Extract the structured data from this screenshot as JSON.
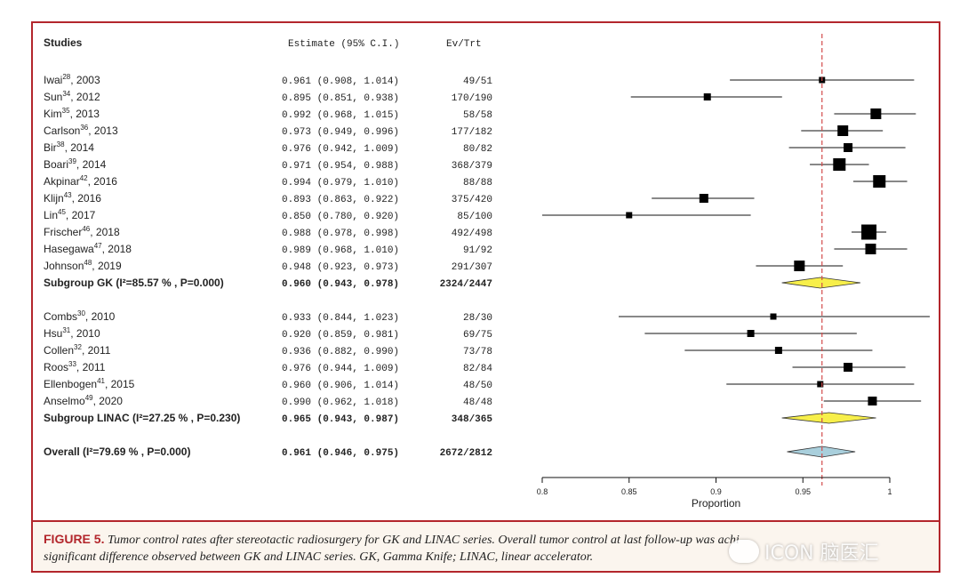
{
  "headers": {
    "study": "Studies",
    "estimate": "Estimate (95% C.I.)",
    "events": "Ev/Trt"
  },
  "chart_data": {
    "type": "forest",
    "x_axis": {
      "label": "Proportion",
      "ticks": [
        "0.8",
        "0.85",
        "0.9",
        "0.95",
        "1"
      ],
      "range": [
        0.8,
        1.0
      ]
    },
    "reference_line": {
      "value": 0.961,
      "color": "#d24b4b",
      "style": "dashed"
    },
    "groups": [
      {
        "studies": [
          {
            "name": "Iwai",
            "ref": "28",
            "year": ", 2003",
            "est": 0.961,
            "lo": 0.908,
            "hi": 1.014,
            "estimate_text": "0.961 (0.908, 1.014)",
            "events": "49/51",
            "weight": 2.5
          },
          {
            "name": "Sun",
            "ref": "34",
            "year": ", 2012",
            "est": 0.895,
            "lo": 0.851,
            "hi": 0.938,
            "estimate_text": "0.895 (0.851, 0.938)",
            "events": "170/190",
            "weight": 3
          },
          {
            "name": "Kim",
            "ref": "35",
            "year": ", 2013",
            "est": 0.992,
            "lo": 0.968,
            "hi": 1.015,
            "estimate_text": "0.992 (0.968, 1.015)",
            "events": "58/58",
            "weight": 5
          },
          {
            "name": "Carlson",
            "ref": "36",
            "year": ", 2013",
            "est": 0.973,
            "lo": 0.949,
            "hi": 0.996,
            "estimate_text": "0.973 (0.949, 0.996)",
            "events": "177/182",
            "weight": 5
          },
          {
            "name": "Bir",
            "ref": "38",
            "year": ", 2014",
            "est": 0.976,
            "lo": 0.942,
            "hi": 1.009,
            "estimate_text": "0.976 (0.942, 1.009)",
            "events": "80/82",
            "weight": 4
          },
          {
            "name": "Boari",
            "ref": "39",
            "year": ", 2014",
            "est": 0.971,
            "lo": 0.954,
            "hi": 0.988,
            "estimate_text": "0.971 (0.954, 0.988)",
            "events": "368/379",
            "weight": 6
          },
          {
            "name": "Akpinar",
            "ref": "42",
            "year": ", 2016",
            "est": 0.994,
            "lo": 0.979,
            "hi": 1.01,
            "estimate_text": "0.994 (0.979, 1.010)",
            "events": "88/88",
            "weight": 6
          },
          {
            "name": "Klijn",
            "ref": "43",
            "year": ", 2016",
            "est": 0.893,
            "lo": 0.863,
            "hi": 0.922,
            "estimate_text": "0.893 (0.863, 0.922)",
            "events": "375/420",
            "weight": 4
          },
          {
            "name": "Lin",
            "ref": "45",
            "year": ", 2017",
            "est": 0.85,
            "lo": 0.78,
            "hi": 0.92,
            "estimate_text": "0.850 (0.780, 0.920)",
            "events": "85/100",
            "weight": 2.5
          },
          {
            "name": "Frischer",
            "ref": "46",
            "year": ", 2018",
            "est": 0.988,
            "lo": 0.978,
            "hi": 0.998,
            "estimate_text": "0.988 (0.978, 0.998)",
            "events": "492/498",
            "weight": 7.5
          },
          {
            "name": "Hasegawa",
            "ref": "47",
            "year": ", 2018",
            "est": 0.989,
            "lo": 0.968,
            "hi": 1.01,
            "estimate_text": "0.989 (0.968, 1.010)",
            "events": "91/92",
            "weight": 5
          },
          {
            "name": "Johnson",
            "ref": "48",
            "year": ", 2019",
            "est": 0.948,
            "lo": 0.923,
            "hi": 0.973,
            "estimate_text": "0.948 (0.923, 0.973)",
            "events": "291/307",
            "weight": 5
          }
        ],
        "summary": {
          "label": "Subgroup GK (I²=85.57 % , P=0.000)",
          "est": 0.96,
          "lo": 0.943,
          "hi": 0.978,
          "estimate_text": "0.960 (0.943, 0.978)",
          "events": "2324/2447",
          "color": "#f7ef4a"
        }
      },
      {
        "studies": [
          {
            "name": "Combs",
            "ref": "30",
            "year": ", 2010",
            "est": 0.933,
            "lo": 0.844,
            "hi": 1.023,
            "estimate_text": "0.933 (0.844, 1.023)",
            "events": "28/30",
            "weight": 2.5
          },
          {
            "name": "Hsu",
            "ref": "31",
            "year": ", 2010",
            "est": 0.92,
            "lo": 0.859,
            "hi": 0.981,
            "estimate_text": "0.920 (0.859, 0.981)",
            "events": "69/75",
            "weight": 3
          },
          {
            "name": "Collen",
            "ref": "32",
            "year": ", 2011",
            "est": 0.936,
            "lo": 0.882,
            "hi": 0.99,
            "estimate_text": "0.936 (0.882, 0.990)",
            "events": "73/78",
            "weight": 3
          },
          {
            "name": "Roos",
            "ref": "33",
            "year": ", 2011",
            "est": 0.976,
            "lo": 0.944,
            "hi": 1.009,
            "estimate_text": "0.976 (0.944, 1.009)",
            "events": "82/84",
            "weight": 4
          },
          {
            "name": "Ellenbogen",
            "ref": "41",
            "year": ", 2015",
            "est": 0.96,
            "lo": 0.906,
            "hi": 1.014,
            "estimate_text": "0.960 (0.906, 1.014)",
            "events": "48/50",
            "weight": 2.5
          },
          {
            "name": "Anselmo",
            "ref": "49",
            "year": ", 2020",
            "est": 0.99,
            "lo": 0.962,
            "hi": 1.018,
            "estimate_text": "0.990 (0.962, 1.018)",
            "events": "48/48",
            "weight": 4
          }
        ],
        "summary": {
          "label": "Subgroup LINAC (I²=27.25 % , P=0.230)",
          "est": 0.965,
          "lo": 0.943,
          "hi": 0.987,
          "estimate_text": "0.965 (0.943, 0.987)",
          "events": "348/365",
          "color": "#f7ef4a"
        }
      }
    ],
    "overall": {
      "label": "Overall (I²=79.69 % , P=0.000)",
      "est": 0.961,
      "lo": 0.946,
      "hi": 0.975,
      "estimate_text": "0.961 (0.946, 0.975)",
      "events": "2672/2812",
      "color": "#a9cfdc"
    }
  },
  "caption": {
    "label": "FIGURE 5.",
    "text": "Tumor control rates after stereotactic radiosurgery for GK and LINAC series. Overall tumor control at last follow-up was achi",
    "text_cont": "significant difference observed between GK and LINAC series. GK, Gamma Knife; LINAC, linear accelerator."
  },
  "watermark": {
    "text": "ICON 脑医汇",
    "icon": "wechat-icon"
  }
}
